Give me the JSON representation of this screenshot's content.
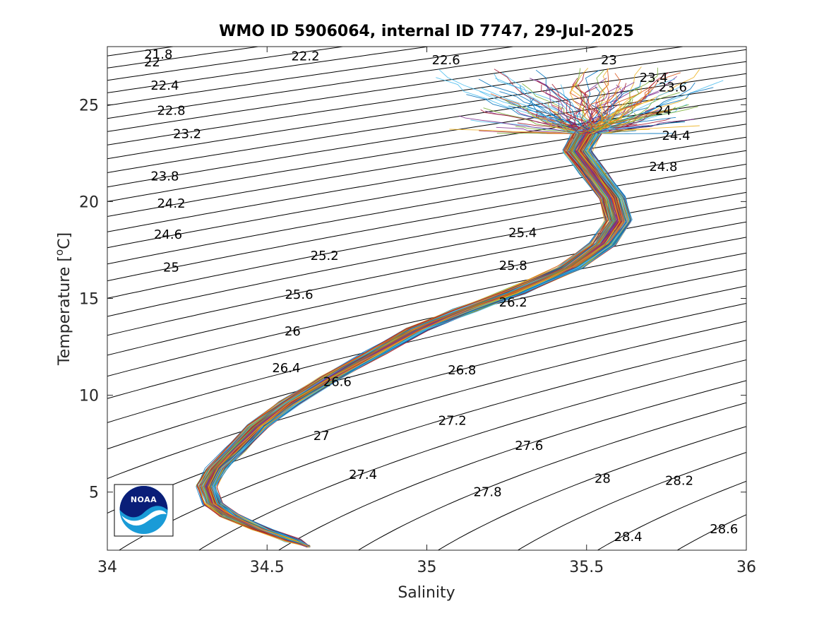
{
  "chart_data": {
    "type": "line",
    "title": "WMO ID 5906064, internal ID 7747, 29-Jul-2025",
    "xlabel": "Salinity",
    "ylabel": "Temperature [",
    "ylabel_sup": "o",
    "ylabel_unit": "C]",
    "xlim": [
      34,
      36
    ],
    "ylim": [
      2.0,
      28.0
    ],
    "xticks": [
      34,
      34.5,
      35,
      35.5,
      36
    ],
    "xtick_labels": [
      "34",
      "34.5",
      "35",
      "35.5",
      "36"
    ],
    "yticks": [
      5,
      10,
      15,
      20,
      25
    ],
    "ytick_labels": [
      "5",
      "10",
      "15",
      "20",
      "25"
    ],
    "grid": false,
    "density_contours": {
      "levels_min": 21.8,
      "levels_max": 28.6,
      "step": 0.2,
      "color": "#000000"
    },
    "contour_labels": [
      {
        "text": "21.8",
        "s": 34.16,
        "t": 27.6
      },
      {
        "text": "22",
        "s": 34.14,
        "t": 27.2
      },
      {
        "text": "22.2",
        "s": 34.62,
        "t": 27.5
      },
      {
        "text": "22.6",
        "s": 35.06,
        "t": 27.3
      },
      {
        "text": "23",
        "s": 35.57,
        "t": 27.3
      },
      {
        "text": "23.4",
        "s": 35.71,
        "t": 26.4
      },
      {
        "text": "23.6",
        "s": 35.77,
        "t": 25.9
      },
      {
        "text": "22.4",
        "s": 34.18,
        "t": 26.0
      },
      {
        "text": "22.8",
        "s": 34.2,
        "t": 24.7
      },
      {
        "text": "24",
        "s": 35.74,
        "t": 24.7
      },
      {
        "text": "23.2",
        "s": 34.25,
        "t": 23.5
      },
      {
        "text": "24.4",
        "s": 35.78,
        "t": 23.4
      },
      {
        "text": "24.8",
        "s": 35.74,
        "t": 21.8
      },
      {
        "text": "23.8",
        "s": 34.18,
        "t": 21.3
      },
      {
        "text": "24.2",
        "s": 34.2,
        "t": 19.9
      },
      {
        "text": "24.6",
        "s": 34.19,
        "t": 18.3
      },
      {
        "text": "25.4",
        "s": 35.3,
        "t": 18.4
      },
      {
        "text": "25.2",
        "s": 34.68,
        "t": 17.2
      },
      {
        "text": "25",
        "s": 34.2,
        "t": 16.6
      },
      {
        "text": "25.8",
        "s": 35.27,
        "t": 16.7
      },
      {
        "text": "25.6",
        "s": 34.6,
        "t": 15.2
      },
      {
        "text": "26.2",
        "s": 35.27,
        "t": 14.8
      },
      {
        "text": "26",
        "s": 34.58,
        "t": 13.3
      },
      {
        "text": "26.4",
        "s": 34.56,
        "t": 11.4
      },
      {
        "text": "26.8",
        "s": 35.11,
        "t": 11.3
      },
      {
        "text": "26.6",
        "s": 34.72,
        "t": 10.7
      },
      {
        "text": "27.2",
        "s": 35.08,
        "t": 8.7
      },
      {
        "text": "27",
        "s": 34.67,
        "t": 7.9
      },
      {
        "text": "27.6",
        "s": 35.32,
        "t": 7.4
      },
      {
        "text": "27.4",
        "s": 34.8,
        "t": 5.9
      },
      {
        "text": "28",
        "s": 35.55,
        "t": 5.7
      },
      {
        "text": "28.2",
        "s": 35.79,
        "t": 5.6
      },
      {
        "text": "27.8",
        "s": 35.19,
        "t": 5.0
      },
      {
        "text": "28.4",
        "s": 35.63,
        "t": 2.7
      },
      {
        "text": "28.6",
        "s": 35.93,
        "t": 3.1
      }
    ],
    "series_note_count": 150,
    "profile_centerline": [
      {
        "s": 34.63,
        "t": 2.2
      },
      {
        "s": 34.58,
        "t": 2.5
      },
      {
        "s": 34.48,
        "t": 3.1
      },
      {
        "s": 34.38,
        "t": 3.8
      },
      {
        "s": 34.33,
        "t": 4.4
      },
      {
        "s": 34.31,
        "t": 5.3
      },
      {
        "s": 34.34,
        "t": 6.2
      },
      {
        "s": 34.4,
        "t": 7.2
      },
      {
        "s": 34.47,
        "t": 8.4
      },
      {
        "s": 34.57,
        "t": 9.6
      },
      {
        "s": 34.7,
        "t": 10.9
      },
      {
        "s": 34.84,
        "t": 12.2
      },
      {
        "s": 34.97,
        "t": 13.4
      },
      {
        "s": 35.12,
        "t": 14.4
      },
      {
        "s": 35.27,
        "t": 15.3
      },
      {
        "s": 35.45,
        "t": 16.6
      },
      {
        "s": 35.55,
        "t": 17.8
      },
      {
        "s": 35.6,
        "t": 19.0
      },
      {
        "s": 35.58,
        "t": 20.2
      },
      {
        "s": 35.52,
        "t": 21.5
      },
      {
        "s": 35.47,
        "t": 22.6
      },
      {
        "s": 35.5,
        "t": 23.5
      }
    ],
    "palette": [
      "#0072BD",
      "#D95319",
      "#EDB120",
      "#7E2F8E",
      "#77AC30",
      "#4DBEEE",
      "#A2142F"
    ],
    "logo": {
      "text": "NOAA",
      "colors": [
        "#0A1E78",
        "#1A9BD7",
        "#ffffff"
      ]
    }
  }
}
